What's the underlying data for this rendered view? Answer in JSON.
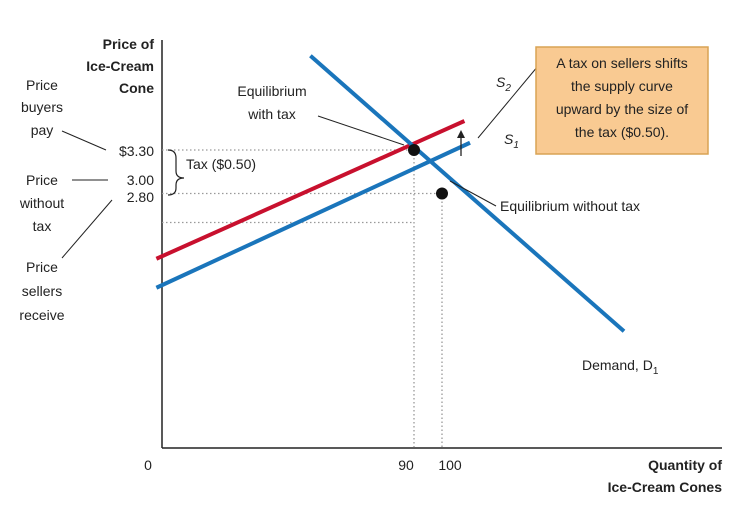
{
  "colors": {
    "supply": "#1a75bb",
    "supply_tax": "#c8102e",
    "demand": "#1a75bb",
    "callout_bg": "#f9ca92",
    "callout_border": "#d9a354",
    "axis": "#222222",
    "guide": "#999999"
  },
  "chart_data": {
    "type": "line",
    "xlabel": [
      "Quantity of",
      "Ice-Cream Cones"
    ],
    "ylabel": [
      "Price of",
      "Ice-Cream",
      "Cone"
    ],
    "x_ticks": [
      {
        "value": 0,
        "label": "0"
      },
      {
        "value": 90,
        "label": "90"
      },
      {
        "value": 100,
        "label": "100"
      }
    ],
    "y_ticks": [
      {
        "value": 3.3,
        "label": "$3.30"
      },
      {
        "value": 3.0,
        "label": "3.00"
      },
      {
        "value": 2.8,
        "label": "2.80"
      }
    ],
    "series": [
      {
        "name": "S1",
        "key": "s1",
        "points": [
          [
            -2,
            2.35
          ],
          [
            110,
            3.35
          ]
        ]
      },
      {
        "name": "S2",
        "key": "s2",
        "points": [
          [
            -2,
            2.55
          ],
          [
            108,
            3.5
          ]
        ]
      },
      {
        "name": "Demand, D1",
        "key": "demand",
        "points": [
          [
            53,
            3.95
          ],
          [
            165,
            2.05
          ]
        ]
      }
    ],
    "equilibria": [
      {
        "key": "with_tax",
        "x": 90,
        "y": 3.3
      },
      {
        "key": "without_tax",
        "x": 100,
        "y": 3.0
      }
    ],
    "annotations": {
      "s1_label": {
        "main": "S",
        "sub": "1"
      },
      "s2_label": {
        "main": "S",
        "sub": "2"
      },
      "demand_label": {
        "main": "Demand, D",
        "sub": "1"
      },
      "eq_tax_label": [
        "Equilibrium",
        "with tax"
      ],
      "eq_notax_label": "Equilibrium without tax",
      "tax_label": "Tax ($0.50)",
      "buyers_pay": [
        "Price",
        "buyers",
        "pay"
      ],
      "without_tax": [
        "Price",
        "without",
        "tax"
      ],
      "sellers_receive": [
        "Price",
        "sellers",
        "receive"
      ],
      "callout": [
        "A tax on sellers shifts",
        "the supply curve",
        "upward by the size of",
        "the tax ($0.50)."
      ]
    }
  }
}
